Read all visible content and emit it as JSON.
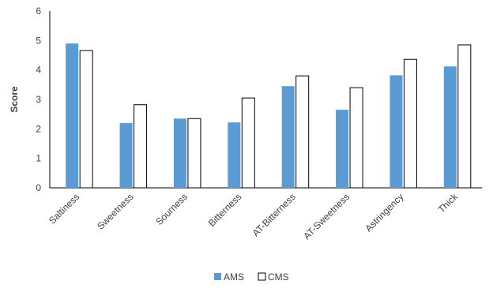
{
  "chart_data": {
    "type": "bar",
    "xlabel": "",
    "ylabel": "Score",
    "ylim": [
      0,
      6
    ],
    "yticks": [
      "0",
      "1",
      "2",
      "3",
      "4",
      "5",
      "6"
    ],
    "grid": false,
    "legend_position": "bottom",
    "categories": [
      "Saltiness",
      "Sweetness",
      "Sourness",
      "Bitterness",
      "AT-Bitterness",
      "AT-Sweetness",
      "Astringency",
      "Thick"
    ],
    "series": [
      {
        "name": "AMS",
        "color": "#5b9bd5",
        "values": [
          4.9,
          2.2,
          2.35,
          2.22,
          3.45,
          2.65,
          3.82,
          4.12
        ]
      },
      {
        "name": "CMS",
        "color": "#ffffff",
        "stroke": "#000000",
        "values": [
          4.66,
          2.82,
          2.35,
          3.05,
          3.8,
          3.4,
          4.36,
          4.85
        ]
      }
    ]
  }
}
